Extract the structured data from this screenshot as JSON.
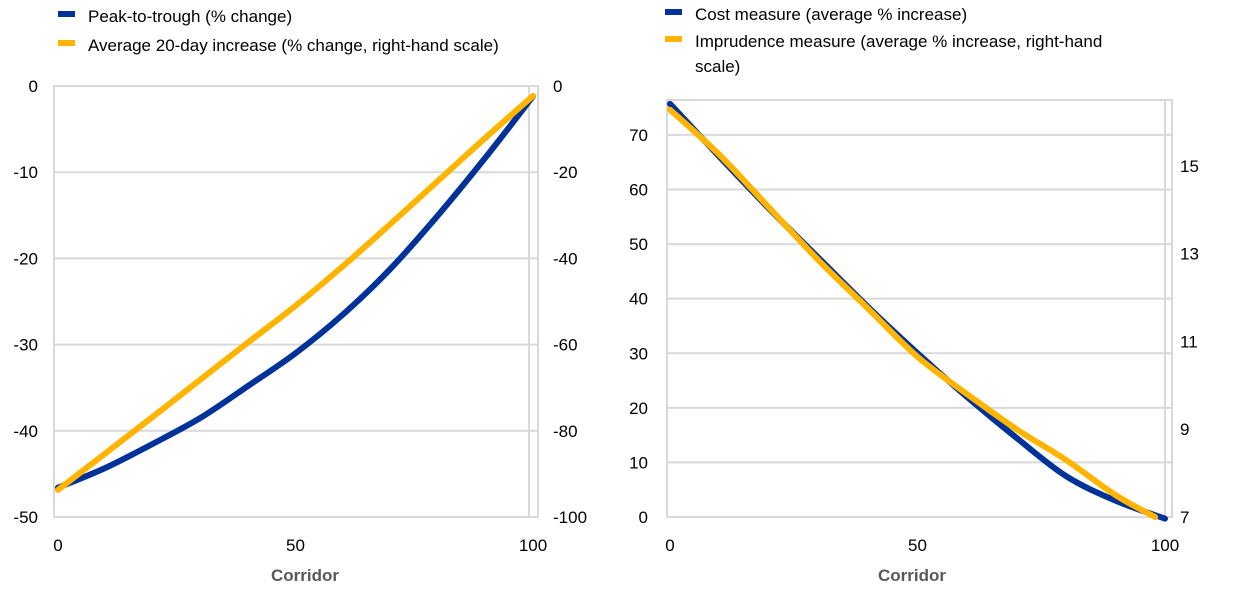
{
  "chart_data": [
    {
      "type": "line",
      "xlabel": "Corridor",
      "xlim": [
        0,
        100
      ],
      "xticks": [
        "0",
        "50",
        "100"
      ],
      "grid": true,
      "legend": "top-left",
      "left_axis": {
        "ylim": [
          -50,
          0
        ],
        "ticks": [
          "0",
          "-10",
          "-20",
          "-30",
          "-40",
          "-50"
        ]
      },
      "right_axis": {
        "ylim": [
          -100,
          0
        ],
        "ticks": [
          "0",
          "-20",
          "-40",
          "-60",
          "-80",
          "-100"
        ]
      },
      "series": [
        {
          "name": "Peak-to-trough (% change)",
          "axis": "left",
          "color": "#003299",
          "x": [
            0,
            10,
            20,
            30,
            40,
            50,
            60,
            70,
            80,
            90,
            100
          ],
          "y": [
            -46.6,
            -44.3,
            -41.5,
            -38.5,
            -34.8,
            -31,
            -26.5,
            -21.2,
            -15,
            -8.3,
            -1.2
          ]
        },
        {
          "name": "Average 20-day increase (% change, right-hand scale)",
          "axis": "right",
          "color": "#FFB400",
          "x": [
            0,
            10,
            20,
            30,
            40,
            50,
            60,
            70,
            80,
            90,
            100
          ],
          "y": [
            -93.7,
            -85.2,
            -76.7,
            -68.1,
            -59.5,
            -51,
            -41.8,
            -32,
            -22,
            -12,
            -2.3
          ]
        }
      ]
    },
    {
      "type": "line",
      "xlabel": "Corridor",
      "xlim": [
        0,
        100
      ],
      "xticks": [
        "0",
        "50",
        "100"
      ],
      "grid": true,
      "legend": "top-left",
      "left_axis": {
        "ylim": [
          0,
          76.4
        ],
        "ticks": [
          "0",
          "10",
          "20",
          "30",
          "40",
          "50",
          "60",
          "70"
        ]
      },
      "right_axis": {
        "ylim": [
          7,
          16.5
        ],
        "ticks": [
          "7",
          "9",
          "11",
          "13",
          "15"
        ]
      },
      "series": [
        {
          "name": "Cost measure (average % increase)",
          "axis": "left",
          "color": "#003299",
          "x": [
            0,
            10,
            20,
            30,
            40,
            50,
            60,
            70,
            80,
            90,
            100
          ],
          "y": [
            75.7,
            66,
            56.5,
            47.5,
            38.5,
            30,
            22,
            14.5,
            7.5,
            3,
            -0.3
          ]
        },
        {
          "name": "Imprudence measure (average % increase, right-hand scale)",
          "name_lines": [
            "Imprudence measure (average % increase, right-hand",
            "scale)"
          ],
          "axis": "right",
          "color": "#FFB400",
          "x": [
            0,
            10,
            20,
            30,
            40,
            50,
            60,
            70,
            80,
            90,
            98
          ],
          "y": [
            16.28,
            15.25,
            14.05,
            12.85,
            11.75,
            10.65,
            9.8,
            9.0,
            8.3,
            7.5,
            7.0
          ]
        }
      ]
    }
  ]
}
